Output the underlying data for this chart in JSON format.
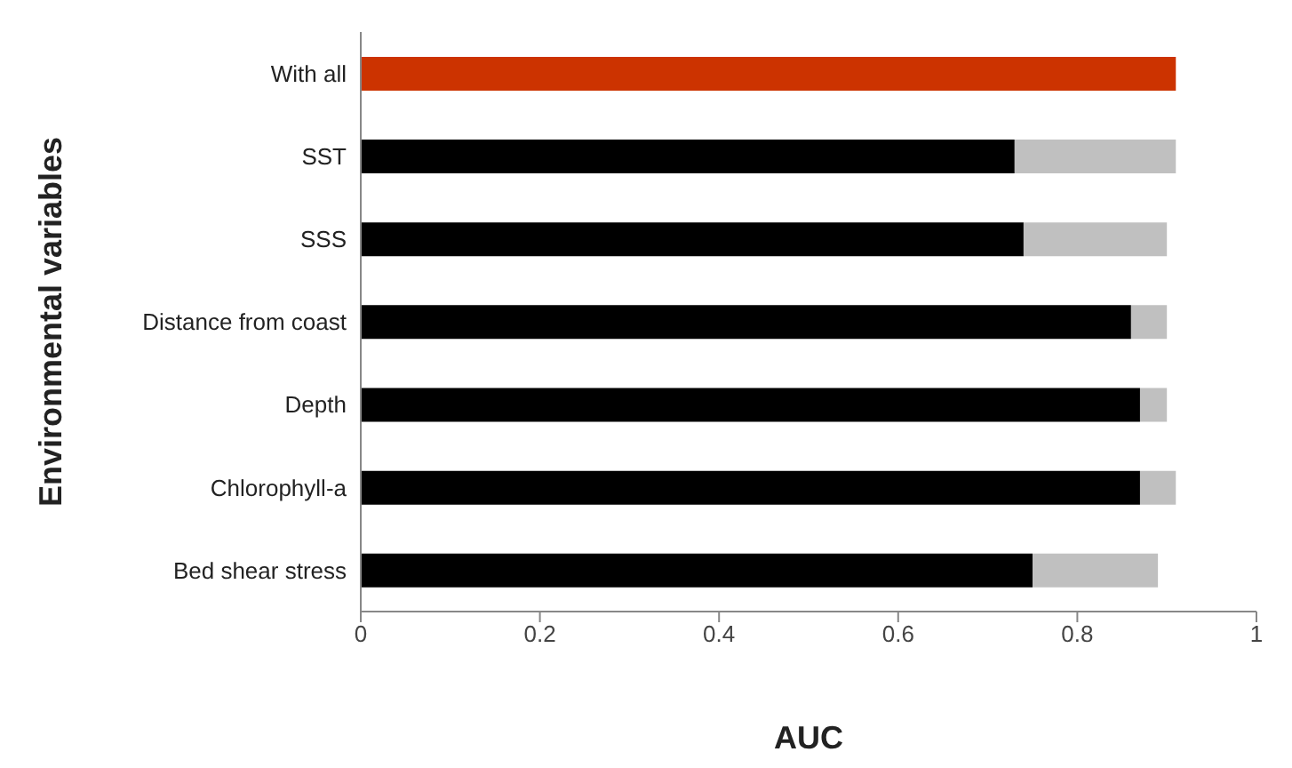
{
  "chart_data": {
    "type": "bar",
    "orientation": "horizontal",
    "stacked": true,
    "xlabel": "AUC",
    "ylabel": "Environmental variables",
    "categories": [
      "With all",
      "SST",
      "SSS",
      "Distance from coast",
      "Depth",
      "Chlorophyll-a",
      "Bed shear stress"
    ],
    "series": [
      {
        "color": "#000000",
        "colors": [
          "#cc3300",
          "#000000",
          "#000000",
          "#000000",
          "#000000",
          "#000000",
          "#000000"
        ],
        "values": [
          0.91,
          0.73,
          0.74,
          0.86,
          0.87,
          0.87,
          0.75
        ]
      },
      {
        "color": "#c0c0c0",
        "values": [
          null,
          0.18,
          0.16,
          0.04,
          0.03,
          0.04,
          0.14
        ]
      }
    ],
    "xlim": [
      0,
      1
    ],
    "xticks": [
      0,
      0.2,
      0.4,
      0.6,
      0.8,
      1
    ],
    "grid": false,
    "legend": false
  }
}
